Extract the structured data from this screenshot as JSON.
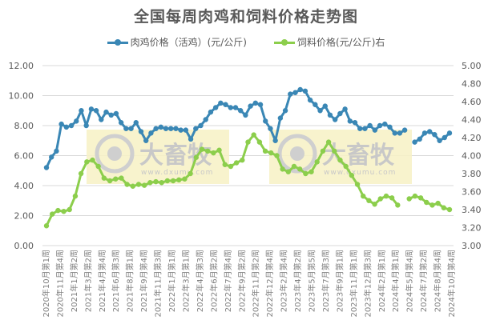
{
  "title": "全国每周肉鸡和饲料价格走势图",
  "legend": [
    {
      "label": "肉鸡价格（活鸡）(元/公斤)",
      "color": "#3a87b5"
    },
    {
      "label": "饲料价格(元/公斤)右",
      "color": "#8cce4c"
    }
  ],
  "watermark": {
    "brand": "大畜牧",
    "url": "www.dxumu.com"
  },
  "chart_data": {
    "type": "line",
    "title": "全国每周肉鸡和饲料价格走势图",
    "xlabel": "",
    "ylabel_left": "元/公斤",
    "ylabel_right": "元/公斤",
    "ylim_left": [
      0,
      12
    ],
    "ylim_right": [
      3.0,
      5.0
    ],
    "yticks_left": [
      "0.00",
      "2.00",
      "4.00",
      "6.00",
      "8.00",
      "10.00",
      "12.00"
    ],
    "yticks_right": [
      "3.00",
      "3.20",
      "3.40",
      "3.60",
      "3.80",
      "4.00",
      "4.20",
      "4.40",
      "4.60",
      "4.80",
      "5.00"
    ],
    "grid": true,
    "legend_position": "top",
    "categories": [
      "2020年10月第1周",
      "2020年11月第4周",
      "2021年1月第2周",
      "2021年3月第2周",
      "2021年4月第4周",
      "2021年6月第3周",
      "2021年8月第1周",
      "2021年9月第4周",
      "2021年11月第3周",
      "2022年1月第1周",
      "2022年3月第1周",
      "2022年4月第3周",
      "2022年6月第2周",
      "2022年7月第4周",
      "2022年9月第2周",
      "2022年11月第2周",
      "2022年12月第4周",
      "2023年2月第4周",
      "2023年4月第2周",
      "2023年5月第5周",
      "2023年7月第3周",
      "2023年9月第1周",
      "2023年11月第1周",
      "2023年12月第3周",
      "2024年2月第1周",
      "2024年4月第1周",
      "2024年5月第4周",
      "2024年7月第2周",
      "2024年8月第4周",
      "2024年10月第4周"
    ],
    "series": [
      {
        "name": "肉鸡价格（活鸡）(元/公斤)",
        "axis": "left",
        "color": "#3a87b5",
        "values": [
          5.2,
          5.9,
          6.3,
          8.1,
          7.9,
          8.0,
          8.3,
          9.0,
          8.0,
          9.1,
          9.0,
          8.4,
          8.9,
          8.7,
          8.8,
          8.2,
          7.8,
          7.8,
          8.2,
          7.6,
          7.0,
          7.5,
          7.8,
          7.9,
          7.8,
          7.8,
          7.8,
          7.7,
          7.7,
          7.1,
          7.8,
          8.0,
          8.4,
          8.9,
          9.2,
          9.5,
          9.4,
          9.2,
          9.2,
          9.0,
          8.7,
          9.3,
          9.5,
          9.4,
          8.3,
          7.8,
          7.0,
          8.5,
          9.0,
          10.1,
          10.2,
          10.4,
          10.3,
          9.7,
          9.4,
          9.0,
          9.3,
          8.7,
          8.4,
          8.8,
          9.1,
          8.3,
          8.2,
          7.8,
          7.8,
          8.0,
          7.7,
          8.0,
          8.1,
          7.9,
          7.5,
          7.5,
          7.7,
          null,
          6.9,
          7.1,
          7.5,
          7.6,
          7.4,
          7.0,
          7.2,
          7.5
        ]
      },
      {
        "name": "饲料价格(元/公斤)右",
        "axis": "right",
        "color": "#8cce4c",
        "values": [
          3.22,
          3.35,
          3.39,
          3.38,
          3.4,
          3.55,
          3.8,
          3.93,
          3.95,
          3.88,
          3.75,
          3.72,
          3.74,
          3.75,
          3.68,
          3.66,
          3.68,
          3.67,
          3.7,
          3.71,
          3.7,
          3.72,
          3.72,
          3.73,
          3.74,
          3.8,
          3.98,
          4.07,
          4.05,
          4.03,
          4.06,
          3.9,
          3.88,
          3.92,
          3.95,
          4.15,
          4.23,
          4.15,
          4.05,
          4.03,
          4.0,
          3.85,
          3.82,
          3.88,
          3.85,
          3.8,
          3.82,
          3.93,
          4.05,
          4.15,
          4.05,
          3.95,
          3.88,
          3.78,
          3.68,
          3.55,
          3.5,
          3.46,
          3.52,
          3.55,
          3.53,
          3.45,
          null,
          3.52,
          3.55,
          3.53,
          3.48,
          3.45,
          3.47,
          3.42,
          3.4
        ]
      }
    ]
  }
}
